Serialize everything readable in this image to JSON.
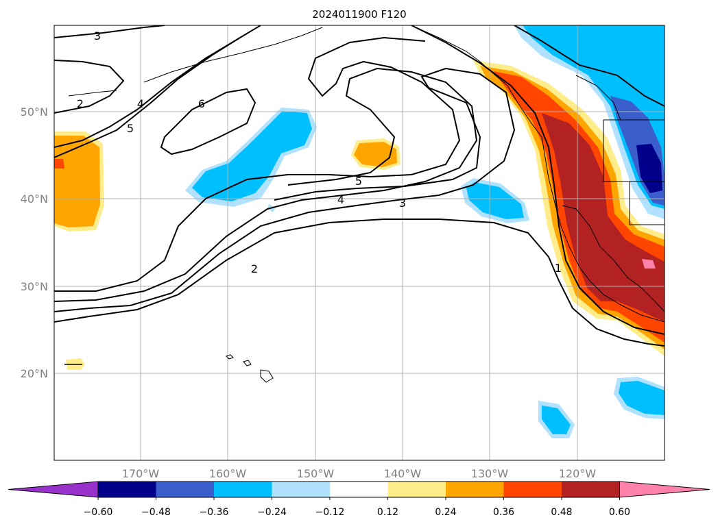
{
  "title": "2024011900 F120",
  "map": {
    "lat_labels": [
      "50°N",
      "40°N",
      "30°N",
      "20°N"
    ],
    "lon_labels": [
      "170°W",
      "160°W",
      "150°W",
      "140°W",
      "130°W",
      "120°W"
    ],
    "contour_labels": [
      "3",
      "2",
      "4",
      "5",
      "6",
      "5",
      "4",
      "3",
      "2",
      "1"
    ]
  },
  "colorbar": {
    "ticks": [
      "−0.60",
      "−0.48",
      "−0.36",
      "−0.24",
      "−0.12",
      "0.12",
      "0.24",
      "0.36",
      "0.48",
      "0.60"
    ],
    "colors": [
      "#9932cc",
      "#00008b",
      "#3a5fcd",
      "#00bfff",
      "#b0e2ff",
      "#ffffff",
      "#ffec8b",
      "#ffa500",
      "#ff4500",
      "#b22222",
      "#ff82ab"
    ]
  }
}
